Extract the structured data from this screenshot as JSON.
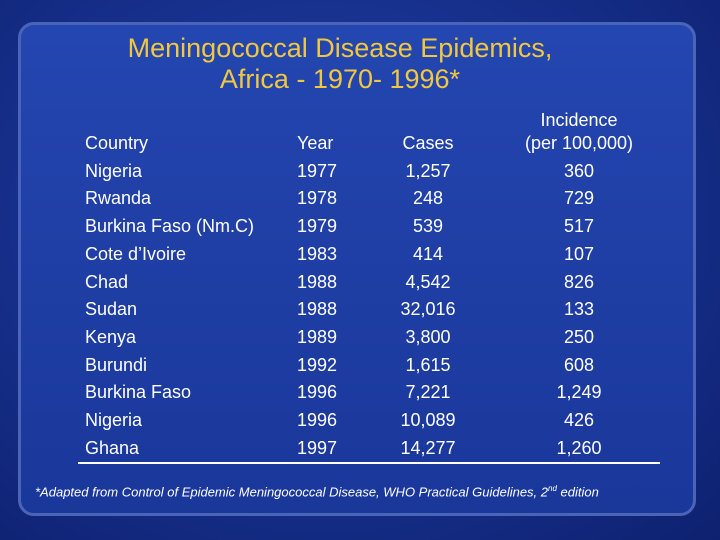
{
  "title": {
    "lines": [
      "Meningococcal Disease Epidemics,",
      "Africa - 1970- 1996*"
    ]
  },
  "table": {
    "header": [
      [
        "Country"
      ],
      [
        "Year"
      ],
      [
        "Cases"
      ],
      [
        "Incidence",
        "(per 100,000)"
      ]
    ],
    "rows": [
      [
        "Nigeria",
        "1977",
        "1,257",
        "360"
      ],
      [
        "Rwanda",
        "1978",
        "248",
        "729"
      ],
      [
        "Burkina Faso (Nm.C)",
        "1979",
        "539",
        "517"
      ],
      [
        "Cote d’Ivoire",
        "1983",
        "414",
        "107"
      ],
      [
        "Chad",
        "1988",
        "4,542",
        "826"
      ],
      [
        "Sudan",
        "1988",
        "32,016",
        "133"
      ],
      [
        "Kenya",
        "1989",
        "3,800",
        "250"
      ],
      [
        "Burundi",
        "1992",
        "1,615",
        "608"
      ],
      [
        "Burkina Faso",
        "1996",
        "7,221",
        "1,249"
      ],
      [
        "Nigeria",
        "1996",
        "10,089",
        "426"
      ],
      [
        "Ghana",
        "1997",
        "14,277",
        "1,260"
      ]
    ]
  },
  "footnote": {
    "before": "*Adapted from Control of Epidemic Meningococcal Disease, WHO Practical Guidelines, 2",
    "sup": "nd",
    "after": " edition"
  }
}
